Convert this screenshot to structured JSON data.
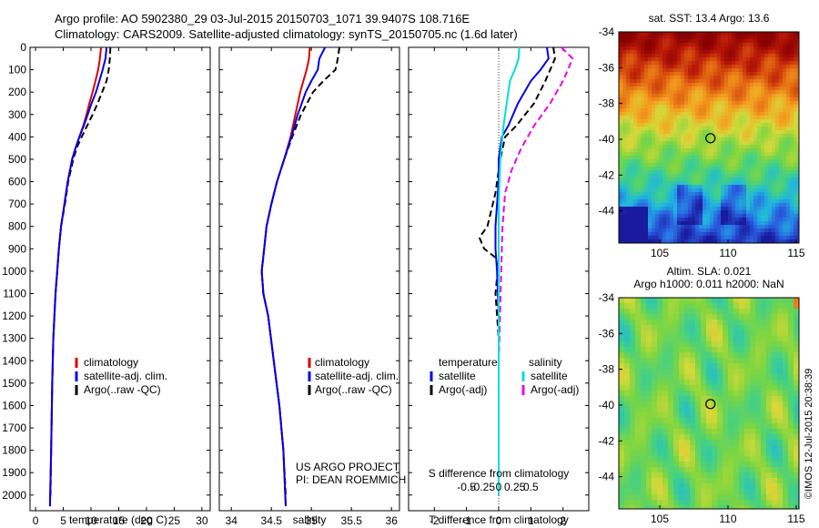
{
  "header": {
    "title_line1": "Argo profile: AO 5902380_29 03-Jul-2015 20150703_1071 39.9407S 108.716E",
    "title_line2": "Climatology: CARS2009. Satellite-adjusted climatology: synTS_20150705.nc (1.6d later)"
  },
  "side_label": "©IMOS 12-Jul-2015 20:38:39",
  "project": {
    "line1": "US ARGO PROJECT",
    "line2": "PI: DEAN ROEMMICH"
  },
  "colors": {
    "climatology": "#dd0000",
    "satellite": "#0000ee",
    "argo": "#000000",
    "sal_satellite": "#00dddd",
    "sal_argo": "#ee00ee",
    "marker": "#000000"
  },
  "chart_data": [
    {
      "id": "temperature",
      "type": "line",
      "xlabel": "temperature (deg C)",
      "ylabel": "",
      "xlim": [
        -1,
        31.5
      ],
      "ylim": [
        0,
        2070
      ],
      "xticks": [
        0,
        5,
        10,
        15,
        20,
        25,
        30
      ],
      "yticks": [
        0,
        100,
        200,
        300,
        400,
        500,
        600,
        700,
        800,
        900,
        1000,
        1100,
        1200,
        1300,
        1400,
        1500,
        1600,
        1700,
        1800,
        1900,
        2000
      ],
      "grid": false,
      "legend_position": "lower-left",
      "legend": [
        "climatology",
        "satellite-adj. clim.",
        "Argo(..raw -QC)"
      ],
      "series": [
        {
          "name": "climatology",
          "style": "solid",
          "x": [
            11.8,
            11.6,
            11.3,
            10.8,
            10.3,
            9.7,
            9.2,
            8.6,
            7.9,
            7.2,
            6.6,
            5.8,
            5.2,
            4.6,
            4.2,
            3.9,
            3.6,
            3.4,
            3.2,
            3.0,
            2.8,
            2.6
          ],
          "y": [
            0,
            50,
            100,
            150,
            200,
            250,
            300,
            350,
            400,
            450,
            500,
            600,
            700,
            800,
            900,
            1000,
            1100,
            1200,
            1300,
            1500,
            1800,
            2050
          ]
        },
        {
          "name": "satellite-adj. clim.",
          "style": "solid",
          "x": [
            12.8,
            12.6,
            12.1,
            11.5,
            10.9,
            10.1,
            9.4,
            8.7,
            7.9,
            7.2,
            6.6,
            5.8,
            5.2,
            4.6,
            4.2,
            3.9,
            3.6,
            3.4,
            3.2,
            3.0,
            2.8,
            2.6
          ],
          "y": [
            0,
            50,
            100,
            150,
            200,
            250,
            300,
            350,
            400,
            450,
            500,
            600,
            700,
            800,
            900,
            1000,
            1100,
            1200,
            1300,
            1500,
            1800,
            2050
          ]
        },
        {
          "name": "Argo(..raw -QC)",
          "style": "dashed",
          "x": [
            13.5,
            13.4,
            13.2,
            12.8,
            12.0,
            11.2,
            10.3,
            9.3,
            8.3,
            7.4,
            6.8,
            5.9,
            5.3,
            4.6,
            4.2,
            3.9,
            3.6,
            3.4,
            3.2,
            3.0,
            2.8,
            2.7
          ],
          "y": [
            0,
            50,
            100,
            150,
            200,
            250,
            300,
            350,
            400,
            450,
            500,
            600,
            700,
            800,
            900,
            1000,
            1100,
            1200,
            1300,
            1500,
            1800,
            2000
          ]
        }
      ]
    },
    {
      "id": "salinity",
      "type": "line",
      "xlabel": "salinity",
      "ylabel": "",
      "xlim": [
        33.85,
        36.1
      ],
      "ylim": [
        0,
        2070
      ],
      "xticks": [
        34,
        34.5,
        35,
        35.5,
        36
      ],
      "xticklabels": [
        "34",
        "34.5",
        "35",
        "35.5",
        "36"
      ],
      "grid": false,
      "legend_position": "lower-left",
      "legend": [
        "climatology",
        "satellite-adj. clim.",
        "Argo(..raw -QC)"
      ],
      "series": [
        {
          "name": "climatology",
          "style": "solid",
          "x": [
            34.98,
            34.97,
            34.94,
            34.9,
            34.86,
            34.8,
            34.74,
            34.66,
            34.57,
            34.5,
            34.44,
            34.41,
            34.38,
            34.4,
            34.46,
            34.53,
            34.6,
            34.65,
            34.68
          ],
          "y": [
            0,
            50,
            100,
            150,
            200,
            300,
            400,
            500,
            600,
            700,
            800,
            900,
            1000,
            1100,
            1200,
            1400,
            1600,
            1800,
            2050
          ]
        },
        {
          "name": "satellite-adj. clim.",
          "style": "solid",
          "x": [
            35.17,
            35.1,
            35.08,
            35.0,
            34.93,
            34.83,
            34.75,
            34.66,
            34.57,
            34.5,
            34.44,
            34.41,
            34.38,
            34.4,
            34.46,
            34.53,
            34.6,
            34.65,
            34.68
          ],
          "y": [
            0,
            50,
            100,
            150,
            200,
            300,
            400,
            500,
            600,
            700,
            800,
            900,
            1000,
            1100,
            1200,
            1400,
            1600,
            1800,
            2050
          ]
        },
        {
          "name": "Argo(..raw -QC)",
          "style": "dashed",
          "x": [
            35.35,
            35.33,
            35.3,
            35.15,
            35.02,
            34.87,
            34.76,
            34.66,
            34.57,
            34.5,
            34.44,
            34.41,
            34.38,
            34.4,
            34.46,
            34.53,
            34.6,
            34.65,
            34.68
          ],
          "y": [
            0,
            50,
            100,
            150,
            200,
            300,
            400,
            500,
            600,
            700,
            800,
            900,
            1000,
            1100,
            1200,
            1400,
            1600,
            1800,
            2000
          ]
        }
      ]
    },
    {
      "id": "difference",
      "type": "line",
      "xlabel": "T difference from climatology",
      "xlabel_top": "S difference from climatology",
      "xlim": [
        -2.8,
        2.8
      ],
      "ylim": [
        0,
        2070
      ],
      "xticks": [
        -2,
        -1,
        0,
        1,
        2
      ],
      "s_xticks": [
        -0.5,
        -0.25,
        0,
        0.25,
        0.5
      ],
      "s_xticklabels": [
        "-0.5",
        "-0.25",
        "0",
        "0.25",
        "0.5"
      ],
      "grid": false,
      "legend_position": "lower-center",
      "legend_temperature_title": "temperature",
      "legend_salinity_title": "salinity",
      "legend": [
        "satellite",
        "Argo(-adj)",
        "satellite",
        "Argo(-adj)"
      ],
      "series": [
        {
          "name": "temperature satellite",
          "style": "solid",
          "x": [
            1.5,
            1.55,
            1.3,
            1.0,
            0.6,
            0.3,
            0.1,
            0,
            0,
            -0.05,
            -0.1,
            -0.1,
            -0.05,
            0,
            0,
            0,
            0
          ],
          "y": [
            0,
            50,
            100,
            150,
            250,
            350,
            400,
            500,
            600,
            700,
            800,
            900,
            1000,
            1200,
            1500,
            1800,
            2000
          ]
        },
        {
          "name": "temperature Argo(-adj)",
          "style": "dashed",
          "x": [
            1.7,
            1.75,
            1.6,
            1.45,
            1.1,
            0.55,
            0.2,
            0.05,
            -0.1,
            -0.35,
            -0.6,
            -0.45,
            0,
            -0.1,
            0,
            0,
            0,
            0
          ],
          "y": [
            0,
            50,
            100,
            150,
            250,
            350,
            400,
            500,
            650,
            800,
            850,
            900,
            950,
            1100,
            1300,
            1500,
            1800,
            2000
          ]
        },
        {
          "name": "salinity satellite",
          "style": "solid",
          "x": [
            0.64,
            0.62,
            0.5,
            0.35,
            0.25,
            0.15,
            0.05,
            0.0,
            0.0,
            0.0,
            0.0,
            0.0
          ],
          "y": [
            0,
            50,
            100,
            150,
            250,
            350,
            500,
            700,
            1000,
            1400,
            1800,
            2000
          ]
        },
        {
          "name": "salinity Argo(-adj)",
          "style": "dashed",
          "x": [
            1.95,
            2.3,
            2.0,
            1.6,
            1.1,
            0.7,
            0.4,
            0.2,
            0.12,
            0.08,
            0.04,
            0.0,
            0.0,
            0.0
          ],
          "y": [
            0,
            50,
            150,
            250,
            350,
            450,
            550,
            650,
            800,
            1000,
            1200,
            1400,
            1700,
            2000
          ]
        }
      ]
    },
    {
      "id": "sst_map",
      "type": "heatmap",
      "title": "sat. SST: 13.4  Argo: 13.6",
      "xlim": [
        102,
        115.2
      ],
      "ylim": [
        -45.8,
        -34
      ],
      "xticks": [
        105,
        110,
        115
      ],
      "yticks": [
        -34,
        -36,
        -38,
        -40,
        -42,
        -44
      ],
      "marker": {
        "lon": 108.716,
        "lat": -39.9407
      }
    },
    {
      "id": "sla_map",
      "type": "heatmap",
      "title_line1": "Altim. SLA: 0.021",
      "title_line2": "Argo h1000: 0.011  h2000: NaN",
      "xlim": [
        102,
        115.2
      ],
      "ylim": [
        -45.8,
        -34
      ],
      "xticks": [
        105,
        110,
        115
      ],
      "yticks": [
        -34,
        -36,
        -38,
        -40,
        -42,
        -44
      ],
      "marker": {
        "lon": 108.716,
        "lat": -39.9407
      }
    }
  ]
}
